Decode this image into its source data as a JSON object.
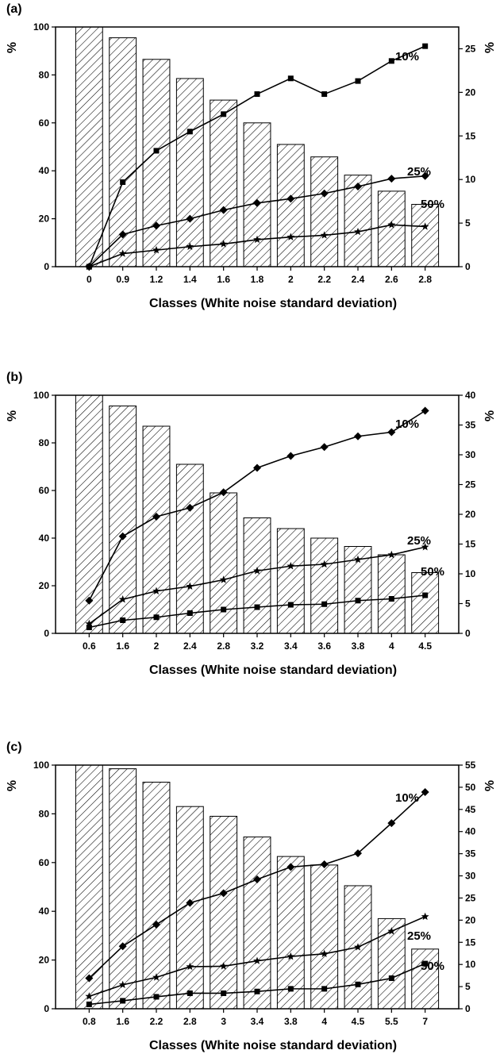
{
  "chart_data": [
    {
      "type": "bar",
      "panel_label": "(a)",
      "xlabel": "Classes (White noise standard deviation)",
      "ylabel": "%",
      "ylabel_right": "%",
      "categories": [
        "0",
        "0.9",
        "1.2",
        "1.4",
        "1.6",
        "1.8",
        "2",
        "2.2",
        "2.4",
        "2.6",
        "2.8"
      ],
      "ylim": [
        0,
        100
      ],
      "y_ticks": [
        0,
        20,
        40,
        60,
        80,
        100
      ],
      "ylim_right": [
        0,
        27.5
      ],
      "y_ticks_right": [
        0,
        5,
        10,
        15,
        20,
        25
      ],
      "bars": {
        "pattern": "hatched",
        "values": [
          100,
          95.5,
          86.5,
          78.5,
          69.5,
          60,
          51,
          45.8,
          38.2,
          31.5,
          26
        ]
      },
      "series": [
        {
          "name": "10%",
          "axis": "right",
          "marker": "square",
          "values": [
            0,
            9.7,
            13.3,
            15.5,
            17.5,
            19.8,
            21.6,
            19.8,
            21.3,
            23.6,
            25.3
          ]
        },
        {
          "name": "25%",
          "axis": "right",
          "marker": "diamond",
          "values": [
            0,
            3.7,
            4.7,
            5.5,
            6.5,
            7.3,
            7.8,
            8.4,
            9.2,
            10.1,
            10.4
          ]
        },
        {
          "name": "50%",
          "axis": "right",
          "marker": "star",
          "values": [
            0,
            1.5,
            1.9,
            2.3,
            2.6,
            3.1,
            3.4,
            3.6,
            4.0,
            4.8,
            4.6
          ]
        }
      ],
      "grid": false
    },
    {
      "type": "bar",
      "panel_label": "(b)",
      "xlabel": "Classes (White noise standard deviation)",
      "ylabel": "%",
      "ylabel_right": "%",
      "categories": [
        "0.6",
        "1.6",
        "2",
        "2.4",
        "2.8",
        "3.2",
        "3.4",
        "3.6",
        "3.8",
        "4",
        "4.5"
      ],
      "ylim": [
        0,
        100
      ],
      "y_ticks": [
        0,
        20,
        40,
        60,
        80,
        100
      ],
      "ylim_right": [
        0,
        40
      ],
      "y_ticks_right": [
        0,
        5,
        10,
        15,
        20,
        25,
        30,
        35,
        40
      ],
      "bars": {
        "pattern": "hatched",
        "values": [
          100,
          95.5,
          87,
          71,
          59,
          48.5,
          44,
          40,
          36.5,
          33,
          25.5
        ]
      },
      "series": [
        {
          "name": "10%",
          "axis": "right",
          "marker": "diamond",
          "values": [
            5.5,
            16.3,
            19.6,
            21.1,
            23.7,
            27.8,
            29.8,
            31.3,
            33.1,
            33.8,
            37.4
          ]
        },
        {
          "name": "25%",
          "axis": "right",
          "marker": "star",
          "values": [
            1.6,
            5.7,
            7.1,
            7.9,
            9.0,
            10.5,
            11.3,
            11.6,
            12.4,
            13.2,
            14.5
          ]
        },
        {
          "name": "50%",
          "axis": "right",
          "marker": "square",
          "values": [
            1.0,
            2.2,
            2.7,
            3.4,
            4.0,
            4.4,
            4.8,
            4.9,
            5.5,
            5.8,
            6.4
          ]
        }
      ],
      "grid": false
    },
    {
      "type": "bar",
      "panel_label": "(c)",
      "xlabel": "Classes (White noise standard deviation)",
      "ylabel": "%",
      "ylabel_right": "%",
      "categories": [
        "0.8",
        "1.6",
        "2.2",
        "2.8",
        "3",
        "3.4",
        "3.8",
        "4",
        "4.5",
        "5.5",
        "7"
      ],
      "ylim": [
        0,
        100
      ],
      "y_ticks": [
        0,
        20,
        40,
        60,
        80,
        100
      ],
      "ylim_right": [
        0,
        55
      ],
      "y_ticks_right": [
        0,
        5,
        10,
        15,
        20,
        25,
        30,
        35,
        40,
        45,
        50,
        55
      ],
      "bars": {
        "pattern": "hatched",
        "values": [
          100,
          98.5,
          93,
          83,
          79,
          70.5,
          62.5,
          59,
          50.5,
          37,
          24.5
        ]
      },
      "series": [
        {
          "name": "10%",
          "axis": "right",
          "marker": "diamond",
          "values": [
            6.9,
            14.1,
            19.0,
            23.9,
            26.1,
            29.2,
            32.0,
            32.6,
            35.1,
            41.9,
            48.9
          ]
        },
        {
          "name": "25%",
          "axis": "right",
          "marker": "star",
          "values": [
            2.8,
            5.4,
            7.1,
            9.5,
            9.6,
            10.8,
            11.8,
            12.4,
            13.9,
            17.5,
            20.8
          ]
        },
        {
          "name": "50%",
          "axis": "right",
          "marker": "square",
          "values": [
            1.0,
            1.8,
            2.7,
            3.5,
            3.5,
            3.9,
            4.5,
            4.5,
            5.5,
            6.9,
            10.2
          ]
        }
      ],
      "grid": false
    }
  ]
}
